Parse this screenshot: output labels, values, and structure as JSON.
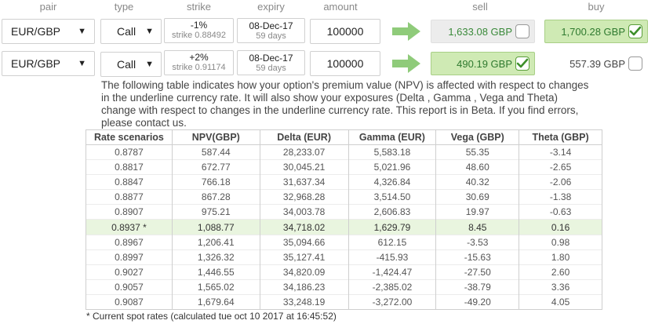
{
  "headers": {
    "pair": "pair",
    "type": "type",
    "strike": "strike",
    "expiry": "expiry",
    "amount": "amount",
    "sell": "sell",
    "buy": "buy"
  },
  "rows": [
    {
      "pair": "EUR/GBP",
      "type": "Call",
      "strike_pct": "-1%",
      "strike_value": "strike 0.88492",
      "expiry_date": "08-Dec-17",
      "expiry_days": "59 days",
      "amount": "100000",
      "sell": "1,633.08 GBP",
      "sell_checked": false,
      "buy": "1,700.28 GBP",
      "buy_checked": true
    },
    {
      "pair": "EUR/GBP",
      "type": "Call",
      "strike_pct": "+2%",
      "strike_value": "strike 0.91174",
      "expiry_date": "08-Dec-17",
      "expiry_days": "59 days",
      "amount": "100000",
      "sell": "490.19 GBP",
      "sell_checked": true,
      "buy": "557.39 GBP",
      "buy_checked": false
    }
  ],
  "description": "The following table indicates how your option's premium value (NPV) is affected with respect to changes in the underline currency rate. It will also show your exposures (Delta , Gamma , Vega and Theta) change with respect to changes in the underline currency rate. This report is in Beta. If you find errors, please contact us.",
  "table": {
    "columns": [
      "Rate scenarios",
      "NPV(GBP)",
      "Delta (EUR)",
      "Gamma (EUR)",
      "Vega (GBP)",
      "Theta (GBP)"
    ],
    "rows": [
      [
        "0.8787",
        "587.44",
        "28,233.07",
        "5,583.18",
        "55.35",
        "-3.14"
      ],
      [
        "0.8817",
        "672.77",
        "30,045.21",
        "5,021.96",
        "48.60",
        "-2.65"
      ],
      [
        "0.8847",
        "766.18",
        "31,637.34",
        "4,326.84",
        "40.32",
        "-2.06"
      ],
      [
        "0.8877",
        "867.28",
        "32,968.28",
        "3,514.50",
        "30.69",
        "-1.38"
      ],
      [
        "0.8907",
        "975.21",
        "34,003.78",
        "2,606.83",
        "19.97",
        "-0.63"
      ],
      [
        "0.8937 *",
        "1,088.77",
        "34,718.02",
        "1,629.79",
        "8.45",
        "0.16"
      ],
      [
        "0.8967",
        "1,206.41",
        "35,094.66",
        "612.15",
        "-3.53",
        "0.98"
      ],
      [
        "0.8997",
        "1,326.32",
        "35,127.41",
        "-415.93",
        "-15.63",
        "1.80"
      ],
      [
        "0.9027",
        "1,446.55",
        "34,820.09",
        "-1,424.47",
        "-27.50",
        "2.60"
      ],
      [
        "0.9057",
        "1,565.02",
        "34,186.23",
        "-2,385.02",
        "-38.79",
        "3.36"
      ],
      [
        "0.9087",
        "1,679.64",
        "33,248.19",
        "-3,272.00",
        "-49.20",
        "4.05"
      ]
    ],
    "highlight_row": 5
  },
  "footnote": "* Current spot rates (calculated tue oct 10 2017 at 16:45:52)",
  "colors": {
    "arrow": "#8fcb7a",
    "highlight": "#e9f5df",
    "selected_price": "#cfeab4",
    "price_text": "#3a8a3a"
  }
}
